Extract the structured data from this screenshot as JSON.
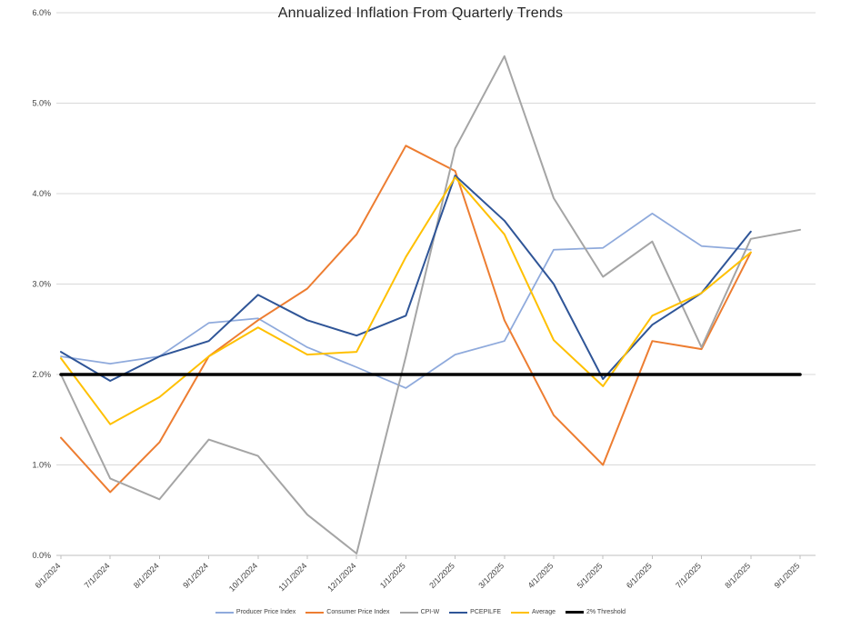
{
  "chart_data": {
    "type": "line",
    "title": "Annualized Inflation From Quarterly Trends",
    "xlabel": "",
    "ylabel": "",
    "ylim": [
      0,
      6
    ],
    "y_ticks": [
      "0.0%",
      "1.0%",
      "2.0%",
      "3.0%",
      "4.0%",
      "5.0%",
      "6.0%"
    ],
    "grid": "horizontal",
    "legend_position": "bottom",
    "categories": [
      "6/1/2024",
      "7/1/2024",
      "8/1/2024",
      "9/1/2024",
      "10/1/2024",
      "11/1/2024",
      "12/1/2024",
      "1/1/2025",
      "2/1/2025",
      "3/1/2025",
      "4/1/2025",
      "5/1/2025",
      "6/1/2025",
      "7/1/2025",
      "8/1/2025",
      "9/1/2025"
    ],
    "series": [
      {
        "name": "Producer Price Index",
        "color": "#8FAADC",
        "width": 1.75,
        "values": [
          2.2,
          2.12,
          2.2,
          2.57,
          2.62,
          2.3,
          2.08,
          1.85,
          2.22,
          2.37,
          3.38,
          3.4,
          3.78,
          3.42,
          3.38,
          null
        ]
      },
      {
        "name": "Consumer Price Index",
        "color": "#ED7D31",
        "width": 2,
        "values": [
          1.3,
          0.7,
          1.25,
          2.2,
          2.6,
          2.95,
          3.55,
          4.53,
          4.25,
          2.6,
          1.55,
          1.0,
          2.37,
          2.28,
          3.35,
          null
        ]
      },
      {
        "name": "CPI-W",
        "color": "#A5A5A5",
        "width": 2,
        "values": [
          2.0,
          0.85,
          0.62,
          1.28,
          1.1,
          0.45,
          0.02,
          2.2,
          4.5,
          5.52,
          3.95,
          3.08,
          3.47,
          2.3,
          3.5,
          3.6
        ]
      },
      {
        "name": "PCEPILFE",
        "color": "#2F5597",
        "width": 2,
        "values": [
          2.25,
          1.93,
          2.2,
          2.37,
          2.88,
          2.6,
          2.43,
          2.65,
          4.2,
          3.7,
          3.0,
          1.95,
          2.55,
          2.9,
          3.58,
          null
        ]
      },
      {
        "name": "Average",
        "color": "#FFC000",
        "width": 2,
        "values": [
          2.18,
          1.45,
          1.75,
          2.2,
          2.52,
          2.22,
          2.25,
          3.3,
          4.18,
          3.55,
          2.38,
          1.87,
          2.65,
          2.9,
          3.35,
          null
        ]
      },
      {
        "name": "2% Threshold",
        "color": "#000000",
        "width": 3.5,
        "values": [
          2.0,
          2.0,
          2.0,
          2.0,
          2.0,
          2.0,
          2.0,
          2.0,
          2.0,
          2.0,
          2.0,
          2.0,
          2.0,
          2.0,
          2.0,
          2.0
        ]
      }
    ]
  }
}
